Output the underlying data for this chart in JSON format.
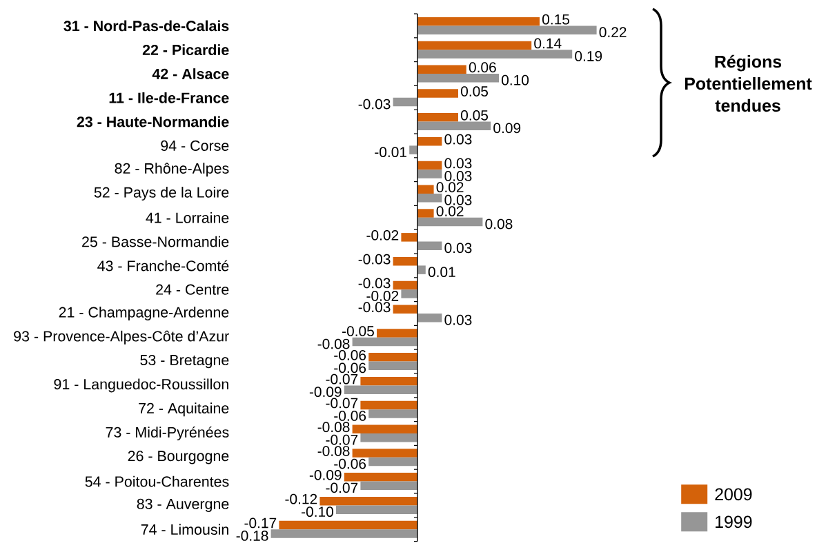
{
  "chart_data": {
    "type": "bar",
    "orientation": "horizontal",
    "categories": [
      "**31 - Nord-Pas-de-Calais**",
      "**22 - Picardie**",
      "**42 - Alsace**",
      "**11 - Ile-de-France**",
      "**23 - Haute-Normandie**",
      "94 - Corse",
      "82 - Rhône-Alpes",
      "52 - Pays de la Loire",
      "41 - Lorraine",
      "25 - Basse-Normandie",
      "43 - Franche-Comté",
      "24 - Centre",
      "21 - Champagne-Ardenne",
      "93 - Provence-Alpes-Côte d’Azur",
      "53 - Bretagne",
      "91 - Languedoc-Roussillon",
      "72 - Aquitaine",
      "73 - Midi-Pyrénées",
      "26 - Bourgogne",
      "54 - Poitou-Charentes",
      "83 - Auvergne",
      "74 - Limousin"
    ],
    "series": [
      {
        "name": "2009",
        "color": "#d4620a",
        "values": [
          0.15,
          0.14,
          0.06,
          0.05,
          0.05,
          0.03,
          0.03,
          0.02,
          0.02,
          -0.02,
          -0.03,
          -0.03,
          -0.03,
          -0.05,
          -0.06,
          -0.07,
          -0.07,
          -0.08,
          -0.08,
          -0.09,
          -0.12,
          -0.17
        ],
        "value_labels": [
          "0.15",
          "0.14",
          "0.06",
          "0.05",
          "0.05",
          "0.03",
          "0.03",
          "0.02",
          "0.02",
          "-0.02",
          "-0.03",
          "-0.03",
          "-0.03",
          "-0.05",
          "-0.06",
          "-0.07",
          "-0.07",
          "-0.08",
          "-0.08",
          "-0.09",
          "-0.12",
          "-0.17"
        ]
      },
      {
        "name": "1999",
        "color": "#969696",
        "values": [
          0.22,
          0.19,
          0.1,
          -0.03,
          0.09,
          -0.01,
          0.03,
          0.03,
          0.08,
          0.03,
          0.01,
          -0.02,
          0.03,
          -0.08,
          -0.06,
          -0.09,
          -0.06,
          -0.07,
          -0.06,
          -0.07,
          -0.1,
          -0.18
        ],
        "value_labels": [
          "0.22",
          "0.19",
          "0.10",
          "-0.03",
          "0.09",
          "-0.01",
          "0.03",
          "0.03",
          "0.08",
          "0.03",
          "0.01",
          "-0.02",
          "0.03",
          "-0.08",
          "-0.06",
          "-0.09",
          "-0.06",
          "-0.07",
          "-0.06",
          "-0.07",
          "-0.10",
          "-0.18"
        ]
      }
    ],
    "annotations": [
      "Régions Potentiellement tendues"
    ],
    "legend": "bottom right",
    "tick_labels": "y"
  }
}
